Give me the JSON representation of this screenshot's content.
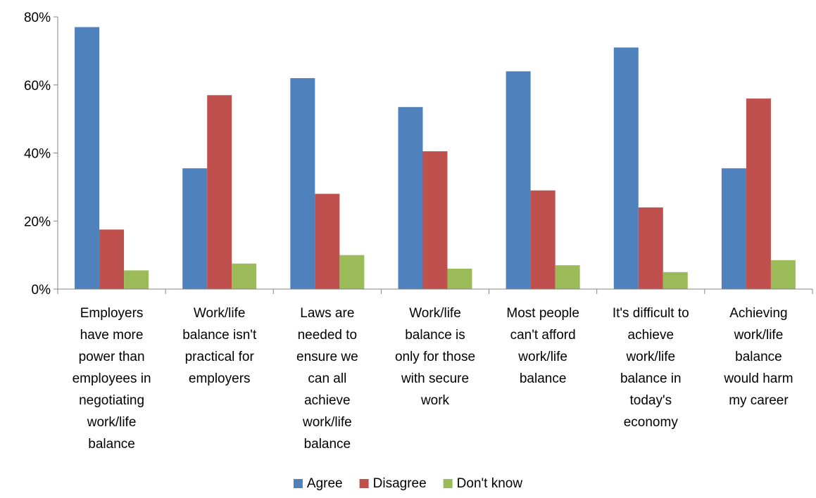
{
  "chart_data": {
    "type": "bar",
    "title": "",
    "xlabel": "",
    "ylabel": "",
    "ylim": [
      0,
      80
    ],
    "y_ticks": [
      0,
      20,
      40,
      60,
      80
    ],
    "y_tick_labels": [
      "0%",
      "20%",
      "40%",
      "60%",
      "80%"
    ],
    "categories": [
      [
        "Employers",
        "have more",
        "power than",
        "employees in",
        "negotiating",
        "work/life",
        "balance"
      ],
      [
        "Work/life",
        "balance isn't",
        "practical for",
        "employers"
      ],
      [
        "Laws are",
        "needed to",
        "ensure we",
        "can all",
        "achieve",
        "work/life",
        "balance"
      ],
      [
        "Work/life",
        "balance is",
        "only for those",
        "with secure",
        "work"
      ],
      [
        "Most people",
        "can't afford",
        "work/life",
        "balance"
      ],
      [
        "It's difficult to",
        "achieve",
        "work/life",
        "balance in",
        "today's",
        "economy"
      ],
      [
        "Achieving",
        "work/life",
        "balance",
        "would harm",
        "my career"
      ]
    ],
    "series": [
      {
        "name": "Agree",
        "color": "#4F81BD",
        "values": [
          77,
          35.5,
          62,
          53.5,
          64,
          71,
          35.5
        ]
      },
      {
        "name": "Disagree",
        "color": "#C0504D",
        "values": [
          17.5,
          57,
          28,
          40.5,
          29,
          24,
          56
        ]
      },
      {
        "name": "Don't know",
        "color": "#9BBB59",
        "values": [
          5.5,
          7.5,
          10,
          6,
          7,
          5,
          8.5
        ]
      }
    ],
    "grid": false,
    "legend_position": "bottom"
  }
}
